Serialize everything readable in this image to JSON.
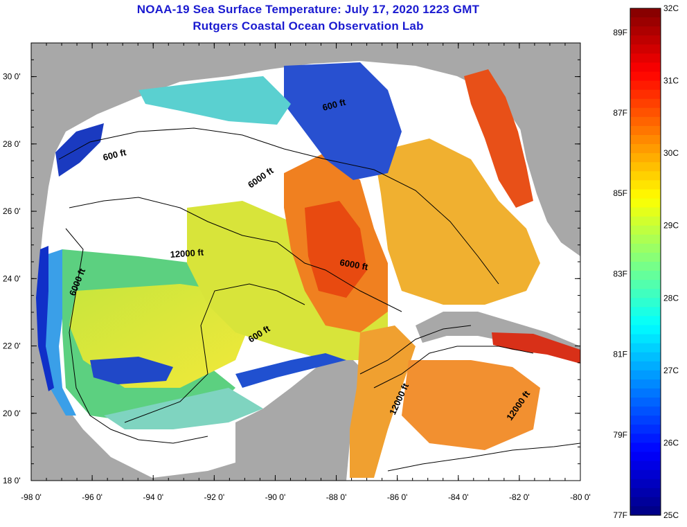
{
  "title_line1": "NOAA-19 Sea Surface Temperature:  July 17, 2020 1223 GMT",
  "title_line2": "Rutgers Coastal Ocean Observation Lab",
  "lat_labels": [
    "30 0'",
    "28 0'",
    "26 0'",
    "24 0'",
    "22 0'",
    "20 0'",
    "18 0'"
  ],
  "lon_labels": [
    "-98 0'",
    "-96 0'",
    "-94 0'",
    "-92 0'",
    "-90 0'",
    "-88 0'",
    "-86 0'",
    "-84 0'",
    "-82 0'",
    "-80 0'"
  ],
  "contour_labels": {
    "c1": "600 ft",
    "c2": "6000 ft",
    "c3": "12000 ft",
    "c4": "6000 ft",
    "c5": "6000 ft",
    "c6": "600 ft",
    "c7": "600 ft",
    "c8": "12000 ft",
    "c9": "12000 ft"
  },
  "colorbar": {
    "celsius_labels": [
      "32C",
      "31C",
      "30C",
      "29C",
      "28C",
      "27C",
      "26C",
      "25C"
    ],
    "fahrenheit_labels": [
      "89F",
      "87F",
      "85F",
      "83F",
      "81F",
      "79F",
      "77F"
    ]
  },
  "colors": {
    "title": "#1a1ad0",
    "land": "#a8a8a8",
    "cloud": "#ffffff",
    "cold": "#00008f",
    "warm": "#800000"
  }
}
